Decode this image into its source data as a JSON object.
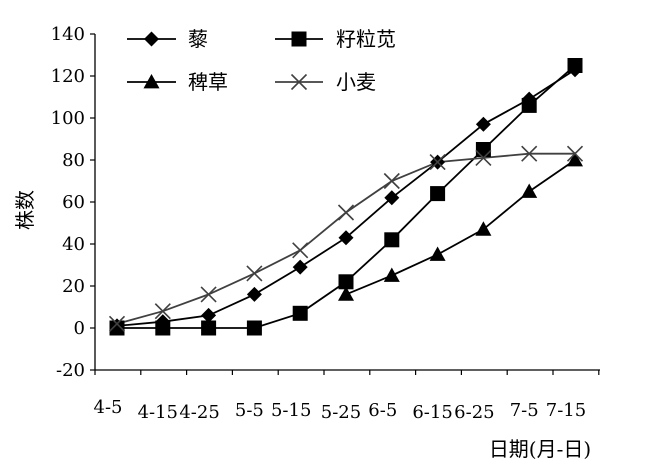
{
  "chart_data": {
    "type": "line",
    "title": "",
    "ylabel": "株数",
    "xlabel": "日期(月-日)",
    "ylim": [
      -20,
      140
    ],
    "yticks": [
      -20,
      0,
      20,
      40,
      60,
      80,
      100,
      120,
      140
    ],
    "categories": [
      "4-5",
      "4-15",
      "4-25",
      "5-5",
      "5-15",
      "5-25",
      "6-5",
      "6-15",
      "6-25",
      "7-5",
      "7-15"
    ],
    "x_tick_labels": [
      "4-5",
      "4-15",
      "4-25",
      "5-5",
      "5-15",
      "5-25",
      "6-5",
      "6-15",
      "6-25",
      "7-5",
      "7-15"
    ],
    "grid": false,
    "legend_position": "top",
    "series": [
      {
        "name": "藜",
        "marker": "diamond",
        "color": "#000000",
        "values": [
          1,
          3,
          6,
          16,
          29,
          43,
          62,
          79,
          97,
          109,
          123
        ]
      },
      {
        "name": "籽粒苋",
        "marker": "square",
        "color": "#000000",
        "values": [
          0,
          0,
          0,
          0,
          7,
          22,
          42,
          64,
          85,
          106,
          125
        ]
      },
      {
        "name": "稗草",
        "marker": "triangle",
        "color": "#000000",
        "values": [
          null,
          null,
          null,
          null,
          null,
          16,
          25,
          35,
          47,
          65,
          80
        ]
      },
      {
        "name": "小麦",
        "marker": "x",
        "color": "#404040",
        "values": [
          2,
          8,
          16,
          26,
          37,
          55,
          70,
          79,
          81,
          83,
          83
        ]
      }
    ]
  }
}
